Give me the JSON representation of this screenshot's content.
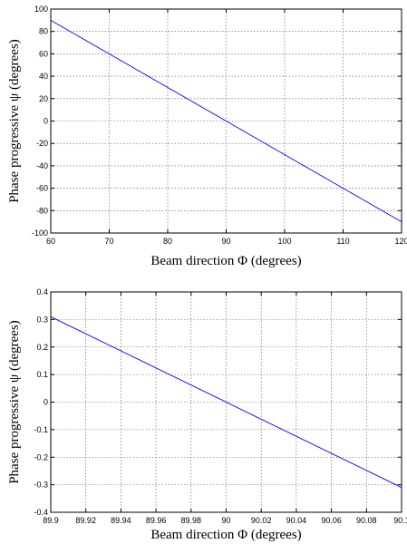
{
  "chart_data": [
    {
      "type": "line",
      "title": "",
      "xlabel": "Beam direction Φ (degrees)",
      "ylabel": "Phase progressive ψ (degrees)",
      "xlim": [
        60,
        120
      ],
      "ylim": [
        -100,
        100
      ],
      "xticks": [
        "60",
        "70",
        "80",
        "90",
        "100",
        "110",
        "120"
      ],
      "yticks": [
        "100",
        "80",
        "60",
        "40",
        "20",
        "0",
        "-20",
        "-40",
        "-60",
        "-80",
        "-100"
      ],
      "grid": true,
      "line_color": "#0000ff",
      "series": [
        {
          "x": [
            60,
            120
          ],
          "y": [
            90,
            -90
          ]
        }
      ]
    },
    {
      "type": "line",
      "title": "",
      "xlabel": "Beam direction Φ (degrees)",
      "ylabel": "Phase progressive ψ (degrees)",
      "xlim": [
        89.9,
        90.1
      ],
      "ylim": [
        -0.4,
        0.4
      ],
      "xticks": [
        "89.9",
        "89.92",
        "89.94",
        "89.96",
        "89.98",
        "90",
        "90.02",
        "90.04",
        "90.06",
        "90.08",
        "90.1"
      ],
      "yticks": [
        "0.4",
        "0.3",
        "0.2",
        "0.1",
        "0",
        "-0.1",
        "-0.2",
        "-0.3",
        "-0.4"
      ],
      "grid": true,
      "line_color": "#0000ff",
      "series": [
        {
          "x": [
            89.9,
            90.1
          ],
          "y": [
            0.31,
            -0.31
          ]
        }
      ]
    }
  ]
}
